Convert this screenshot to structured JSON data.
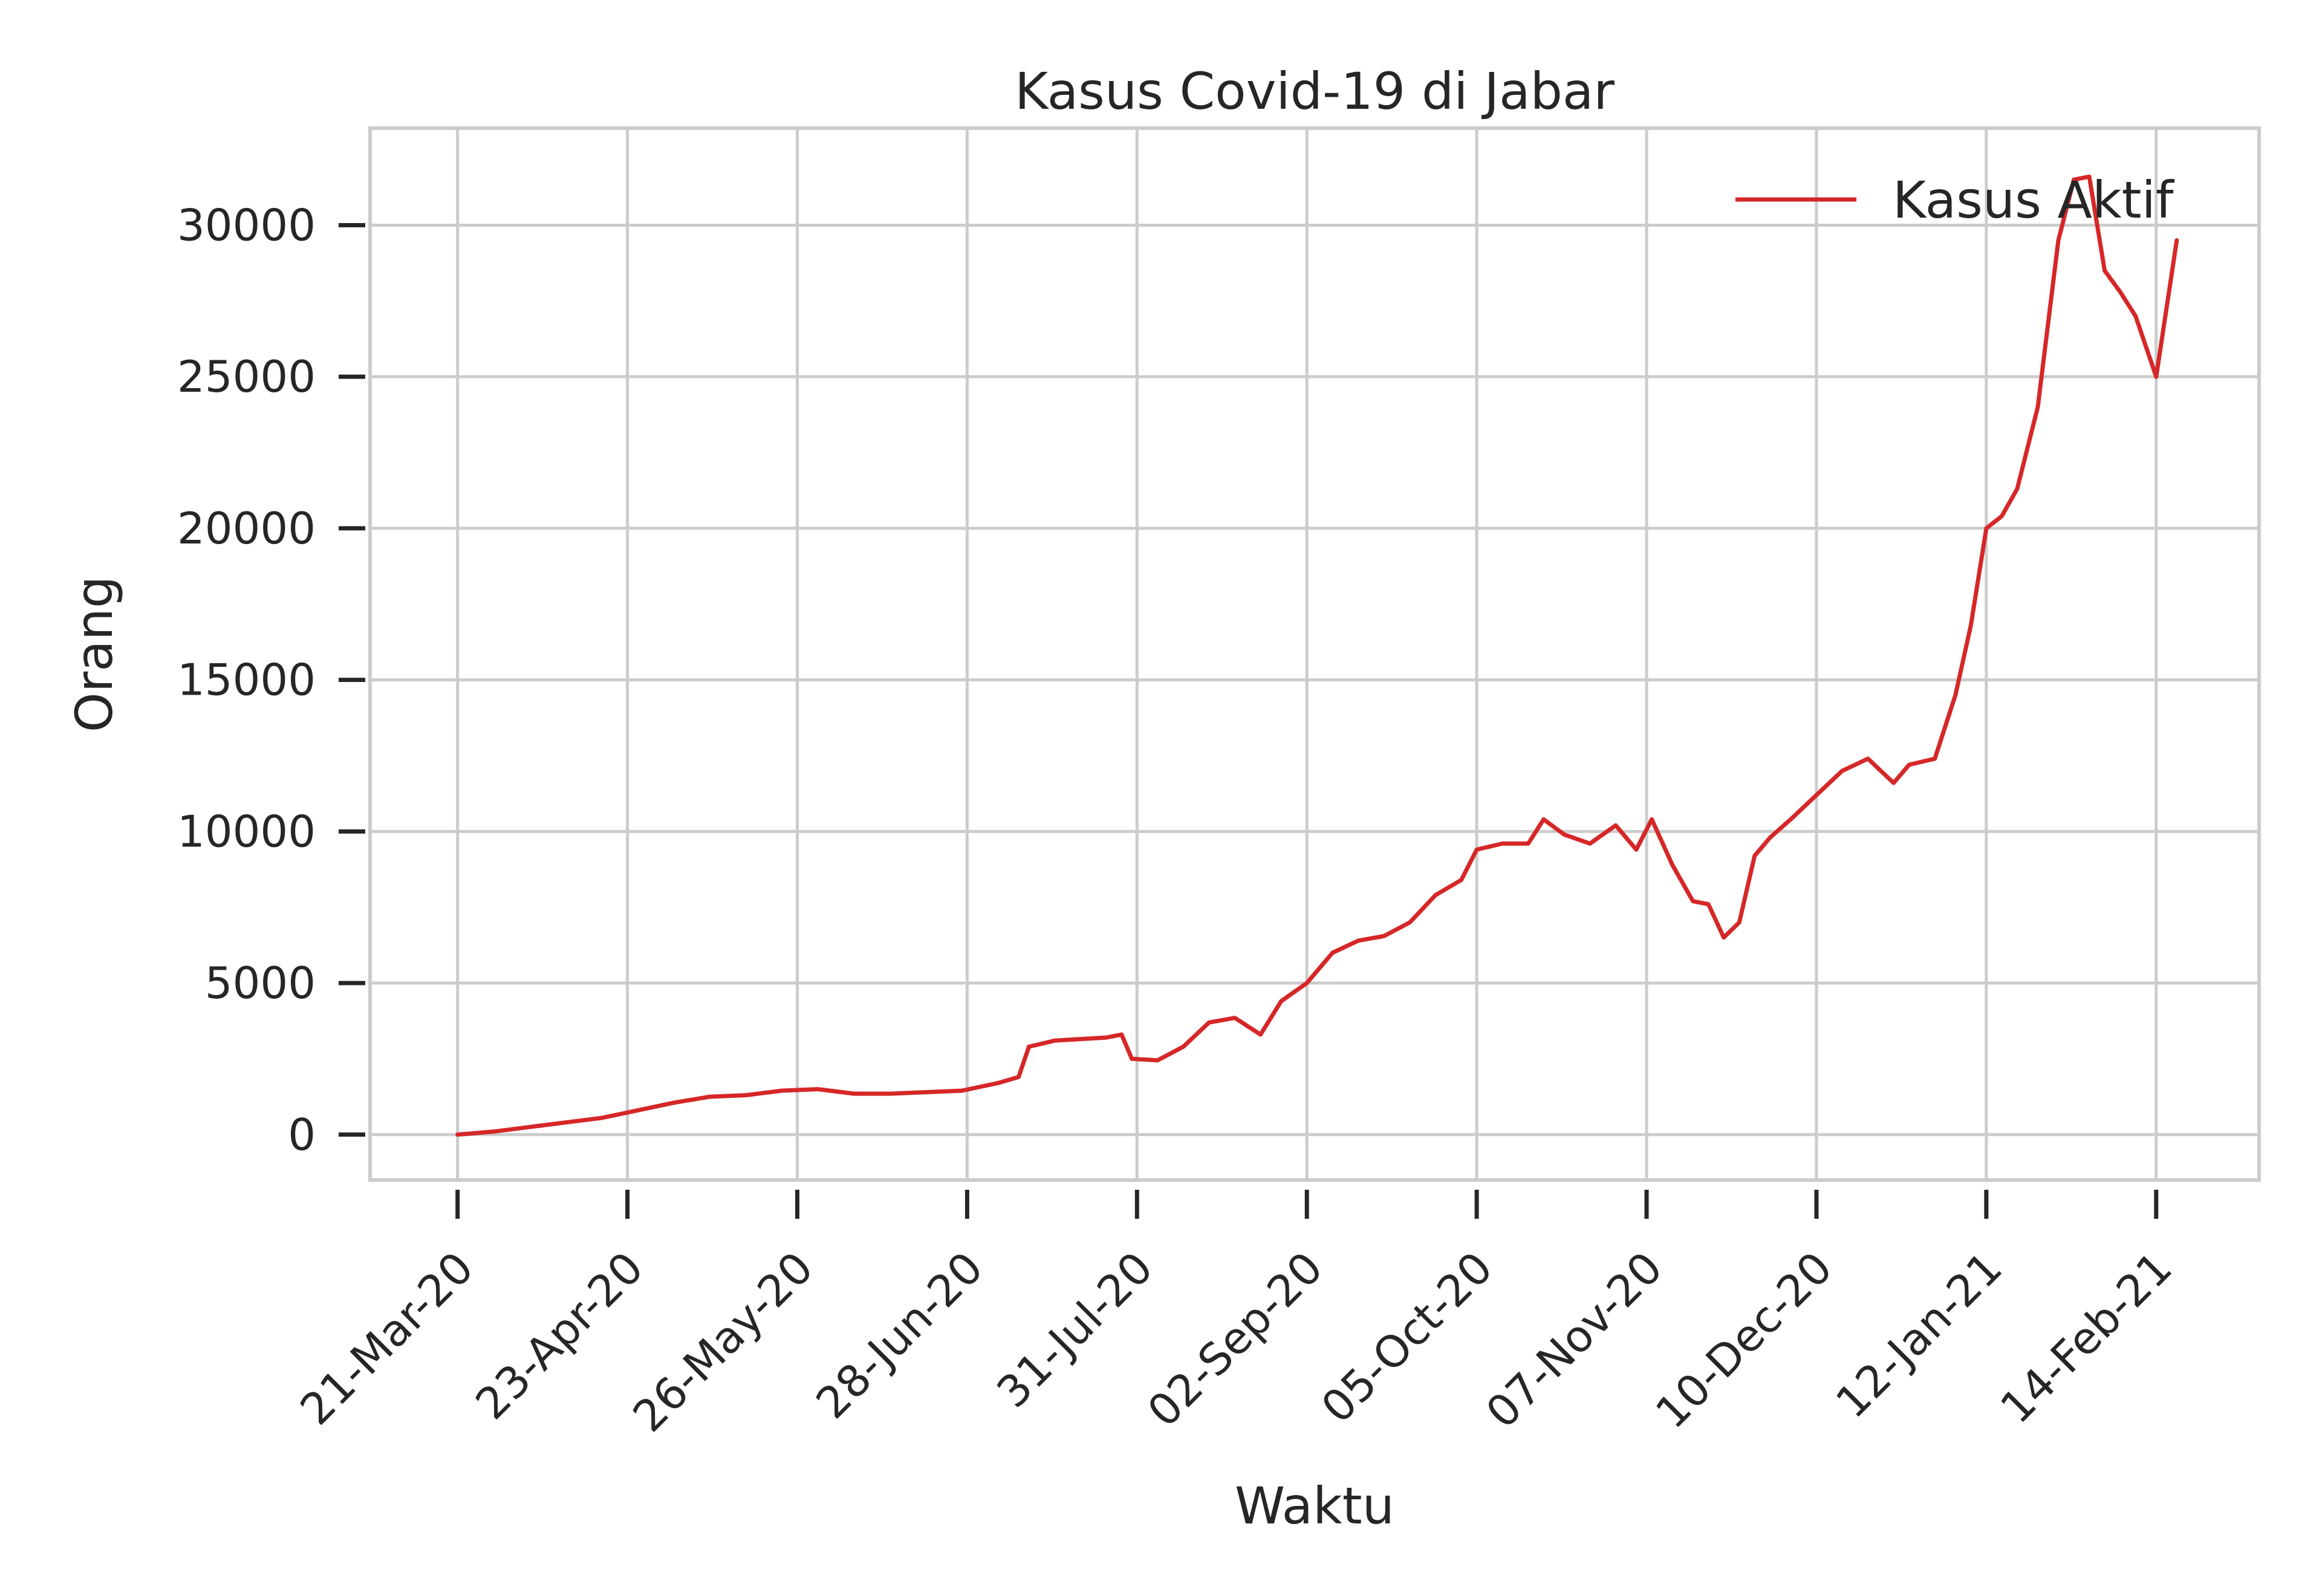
{
  "chart_data": {
    "type": "line",
    "title": "Kasus Covid-19 di Jabar",
    "xlabel": "Waktu",
    "ylabel": "Orang",
    "x_tick_labels": [
      "21-Mar-20",
      "23-Apr-20",
      "26-May-20",
      "28-Jun-20",
      "31-Jul-20",
      "02-Sep-20",
      "05-Oct-20",
      "07-Nov-20",
      "10-Dec-20",
      "12-Jan-21",
      "14-Feb-21"
    ],
    "x_tick_dates": [
      "2020-03-21",
      "2020-04-23",
      "2020-05-26",
      "2020-06-28",
      "2020-07-31",
      "2020-09-02",
      "2020-10-05",
      "2020-11-07",
      "2020-12-10",
      "2021-01-12",
      "2021-02-14"
    ],
    "xlim": [
      "2020-03-04",
      "2021-03-06"
    ],
    "y_ticks": [
      0,
      5000,
      10000,
      15000,
      20000,
      25000,
      30000
    ],
    "y_tick_labels": [
      "0",
      "5000",
      "10000",
      "15000",
      "20000",
      "25000",
      "30000"
    ],
    "ylim": [
      -1500,
      33200
    ],
    "grid": true,
    "legend": "top-right",
    "colors": {
      "series": "#d62728",
      "grid": "#cccccc",
      "text": "#262626"
    },
    "series": [
      {
        "name": "Kasus Aktif",
        "x": [
          "2020-03-21",
          "2020-03-28",
          "2020-04-04",
          "2020-04-11",
          "2020-04-18",
          "2020-04-25",
          "2020-05-02",
          "2020-05-09",
          "2020-05-16",
          "2020-05-23",
          "2020-05-30",
          "2020-06-06",
          "2020-06-13",
          "2020-06-20",
          "2020-06-27",
          "2020-07-04",
          "2020-07-08",
          "2020-07-10",
          "2020-07-15",
          "2020-07-20",
          "2020-07-25",
          "2020-07-28",
          "2020-07-30",
          "2020-08-04",
          "2020-08-09",
          "2020-08-14",
          "2020-08-19",
          "2020-08-24",
          "2020-08-28",
          "2020-09-02",
          "2020-09-07",
          "2020-09-12",
          "2020-09-17",
          "2020-09-22",
          "2020-09-27",
          "2020-10-02",
          "2020-10-05",
          "2020-10-10",
          "2020-10-15",
          "2020-10-18",
          "2020-10-22",
          "2020-10-27",
          "2020-11-01",
          "2020-11-05",
          "2020-11-08",
          "2020-11-12",
          "2020-11-16",
          "2020-11-19",
          "2020-11-22",
          "2020-11-25",
          "2020-11-28",
          "2020-12-01",
          "2020-12-05",
          "2020-12-10",
          "2020-12-15",
          "2020-12-20",
          "2020-12-25",
          "2020-12-28",
          "2021-01-02",
          "2021-01-06",
          "2021-01-09",
          "2021-01-12",
          "2021-01-15",
          "2021-01-18",
          "2021-01-22",
          "2021-01-26",
          "2021-01-29",
          "2021-02-01",
          "2021-02-04",
          "2021-02-07",
          "2021-02-10",
          "2021-02-14",
          "2021-02-18"
        ],
        "y": [
          0,
          100,
          250,
          400,
          550,
          800,
          1050,
          1250,
          1300,
          1450,
          1500,
          1350,
          1350,
          1400,
          1450,
          1700,
          1900,
          2900,
          3100,
          3150,
          3200,
          3300,
          2500,
          2450,
          2900,
          3700,
          3850,
          3300,
          4400,
          5000,
          6000,
          6400,
          6550,
          7000,
          7900,
          8400,
          9400,
          9600,
          9600,
          10400,
          9900,
          9600,
          10200,
          9400,
          10400,
          8900,
          7700,
          7600,
          6500,
          7000,
          9200,
          9800,
          10400,
          11200,
          12000,
          12400,
          11600,
          12200,
          12400,
          14500,
          16800,
          20000,
          20400,
          21300,
          24000,
          29500,
          31500,
          31600,
          28500,
          27800,
          27000,
          25000,
          29500
        ]
      }
    ]
  }
}
